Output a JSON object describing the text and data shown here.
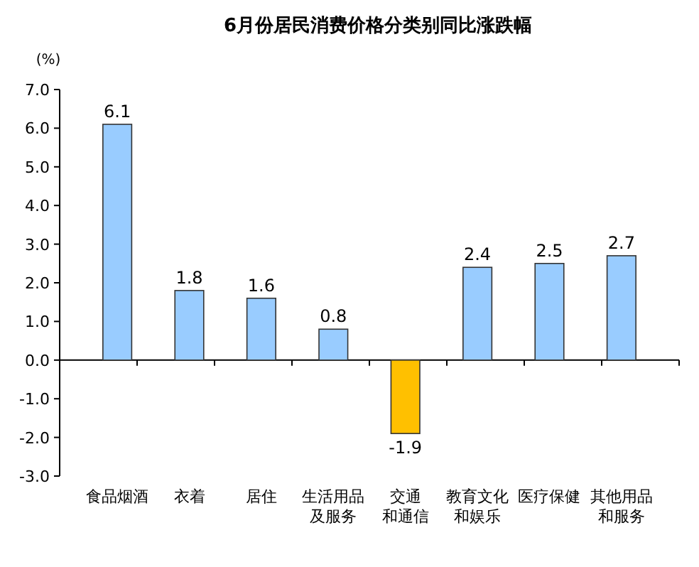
{
  "chart_data": {
    "type": "bar",
    "title": "6月份居民消费价格分类别同比涨跌幅",
    "ylabel": "(%)",
    "categories": [
      "食品烟酒",
      "衣着",
      "居住",
      "生活用品及服务",
      "交通和通信",
      "教育文化和娱乐",
      "医疗保健",
      "其他用品和服务"
    ],
    "values": [
      6.1,
      1.8,
      1.6,
      0.8,
      -1.9,
      2.4,
      2.5,
      2.7
    ],
    "colors": [
      "#99ccff",
      "#99ccff",
      "#99ccff",
      "#99ccff",
      "#ffc000",
      "#99ccff",
      "#99ccff",
      "#99ccff"
    ],
    "ylim": [
      -3,
      7
    ],
    "yticks": [
      {
        "value": -3,
        "label": "-3.0"
      },
      {
        "value": -2,
        "label": "-2.0"
      },
      {
        "value": -1,
        "label": "-1.0"
      },
      {
        "value": 0,
        "label": "0.0"
      },
      {
        "value": 1,
        "label": "1.0"
      },
      {
        "value": 2,
        "label": "2.0"
      },
      {
        "value": 3,
        "label": "3.0"
      },
      {
        "value": 4,
        "label": "4.0"
      },
      {
        "value": 5,
        "label": "5.0"
      },
      {
        "value": 6,
        "label": "6.0"
      },
      {
        "value": 7,
        "label": "7.0"
      }
    ],
    "data_labels": true
  }
}
